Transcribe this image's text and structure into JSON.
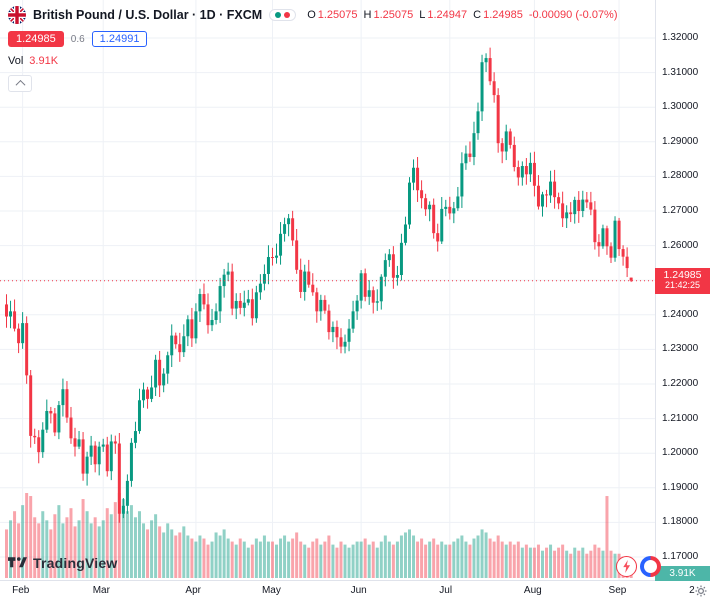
{
  "header": {
    "symbol_title": "British Pound / U.S. Dollar · 1D · FXCM",
    "ohlc": {
      "o_label": "O",
      "o": "1.25075",
      "h_label": "H",
      "h": "1.25075",
      "l_label": "L",
      "l": "1.24947",
      "c_label": "C",
      "c": "1.24985",
      "change": "-0.00090 (-0.07%)"
    },
    "bid": "1.24985",
    "spread": "0.6",
    "ask": "1.24991",
    "vol_label": "Vol",
    "vol_value": "3.91K"
  },
  "price_label": {
    "price": "1.24985",
    "countdown": "21:42:25"
  },
  "volume_axis_label": "3.91K",
  "logo": {
    "text": "TradingView"
  },
  "icons": {
    "flag": "gb-flag-icon",
    "legend_dots": [
      "up-color-dot",
      "down-color-dot"
    ],
    "collapse": "chevron-up-icon",
    "lightning": "lightning-icon",
    "broker": "broker-orb-icon",
    "corner": "gear-icon"
  },
  "colors": {
    "up": "#089981",
    "down": "#f23645",
    "vol_up": "rgba(8,153,129,0.45)",
    "vol_down": "rgba(242,54,69,0.45)",
    "accent_blue": "#2962ff",
    "grid": "#eef1f6",
    "axis_text": "#131722",
    "muted": "#787b86",
    "vol_label_bg": "#4db6a8"
  },
  "chart_data": {
    "type": "candlestick",
    "title": "British Pound / U.S. Dollar · 1D · FXCM",
    "xlabel": "",
    "ylabel": "",
    "ylim": [
      1.17,
      1.32
    ],
    "current_price": 1.24985,
    "last": {
      "open": 1.25075,
      "high": 1.25075,
      "low": 1.24947,
      "close": 1.24985
    },
    "first_open": 1.243,
    "closes": [
      1.2395,
      1.241,
      1.236,
      1.2318,
      1.2376,
      1.2225,
      1.205,
      1.2046,
      1.2003,
      1.2068,
      1.2122,
      1.2115,
      1.206,
      1.2139,
      1.2185,
      1.2103,
      1.2043,
      1.2019,
      1.204,
      1.1941,
      1.199,
      1.2022,
      1.1968,
      1.2019,
      1.2025,
      1.1948,
      1.2034,
      1.2028,
      1.1825,
      1.1848,
      1.192,
      1.203,
      1.2064,
      1.2153,
      1.2184,
      1.2157,
      1.219,
      1.227,
      1.2196,
      1.223,
      1.2283,
      1.234,
      1.2315,
      1.2292,
      1.2338,
      1.2387,
      1.2332,
      1.241,
      1.246,
      1.243,
      1.237,
      1.2385,
      1.241,
      1.2483,
      1.2516,
      1.2525,
      1.2418,
      1.244,
      1.242,
      1.2435,
      1.2445,
      1.239,
      1.2465,
      1.249,
      1.2518,
      1.2567,
      1.2565,
      1.2571,
      1.2634,
      1.2662,
      1.2679,
      1.2615,
      1.253,
      1.2466,
      1.2525,
      1.2487,
      1.2465,
      1.241,
      1.2443,
      1.2412,
      1.235,
      1.2365,
      1.2335,
      1.2308,
      1.2322,
      1.236,
      1.241,
      1.2441,
      1.252,
      1.2452,
      1.2471,
      1.2435,
      1.2439,
      1.251,
      1.2558,
      1.2575,
      1.2507,
      1.2515,
      1.2608,
      1.2661,
      1.2782,
      1.2825,
      1.276,
      1.2737,
      1.2705,
      1.2718,
      1.2636,
      1.2612,
      1.2706,
      1.2712,
      1.2693,
      1.2708,
      1.2742,
      1.2838,
      1.2866,
      1.2856,
      1.2925,
      1.2988,
      1.313,
      1.3142,
      1.3075,
      1.3035,
      1.2896,
      1.2872,
      1.293,
      1.2891,
      1.2827,
      1.2797,
      1.283,
      1.2806,
      1.2839,
      1.2773,
      1.2713,
      1.2748,
      1.2745,
      1.2785,
      1.274,
      1.2722,
      1.2679,
      1.2696,
      1.2691,
      1.2732,
      1.27,
      1.2733,
      1.2725,
      1.2704,
      1.261,
      1.2598,
      1.265,
      1.2598,
      1.2565,
      1.2672,
      1.259,
      1.2568,
      1.2535,
      1.24985
    ],
    "volumes": [
      16,
      19,
      22,
      18,
      24,
      28,
      27,
      20,
      18,
      22,
      19,
      16,
      21,
      24,
      18,
      20,
      23,
      17,
      19,
      26,
      22,
      18,
      20,
      17,
      19,
      23,
      21,
      25,
      28,
      26,
      22,
      24,
      20,
      22,
      18,
      16,
      19,
      21,
      17,
      15,
      18,
      16,
      14,
      15,
      17,
      14,
      13,
      12,
      14,
      13,
      11,
      12,
      15,
      14,
      16,
      13,
      12,
      11,
      13,
      12,
      10,
      11,
      13,
      12,
      14,
      12,
      12,
      11,
      13,
      14,
      12,
      13,
      15,
      12,
      11,
      10,
      12,
      13,
      11,
      12,
      14,
      11,
      10,
      12,
      11,
      10,
      11,
      12,
      12,
      13,
      11,
      12,
      10,
      12,
      14,
      12,
      11,
      12,
      14,
      15,
      16,
      14,
      12,
      13,
      11,
      12,
      13,
      11,
      12,
      11,
      11,
      12,
      13,
      14,
      12,
      11,
      13,
      14,
      16,
      15,
      13,
      12,
      14,
      12,
      11,
      12,
      11,
      12,
      10,
      11,
      10,
      10,
      11,
      9,
      10,
      11,
      9,
      10,
      11,
      9,
      8,
      10,
      9,
      10,
      8,
      9,
      11,
      10,
      9,
      27,
      9,
      8,
      8,
      7,
      6,
      3.91
    ],
    "volume_unit": "K",
    "y_axis": {
      "ticks": [
        "1.32000",
        "1.31000",
        "1.30000",
        "1.29000",
        "1.28000",
        "1.27000",
        "1.26000",
        "1.25000",
        "1.24000",
        "1.23000",
        "1.22000",
        "1.21000",
        "1.20000",
        "1.19000",
        "1.18000",
        "1.17000"
      ],
      "hidden": "1.25000"
    },
    "x_axis": {
      "ticks": [
        {
          "label": "Feb",
          "index": 4
        },
        {
          "label": "Mar",
          "index": 24
        },
        {
          "label": "Apr",
          "index": 47
        },
        {
          "label": "May",
          "index": 66
        },
        {
          "label": "Jun",
          "index": 88
        },
        {
          "label": "Jul",
          "index": 110
        },
        {
          "label": "Aug",
          "index": 131
        },
        {
          "label": "Sep",
          "index": 152
        },
        {
          "label": "2",
          "index": 172
        }
      ]
    },
    "legend_position": "top-left",
    "grid": true
  }
}
